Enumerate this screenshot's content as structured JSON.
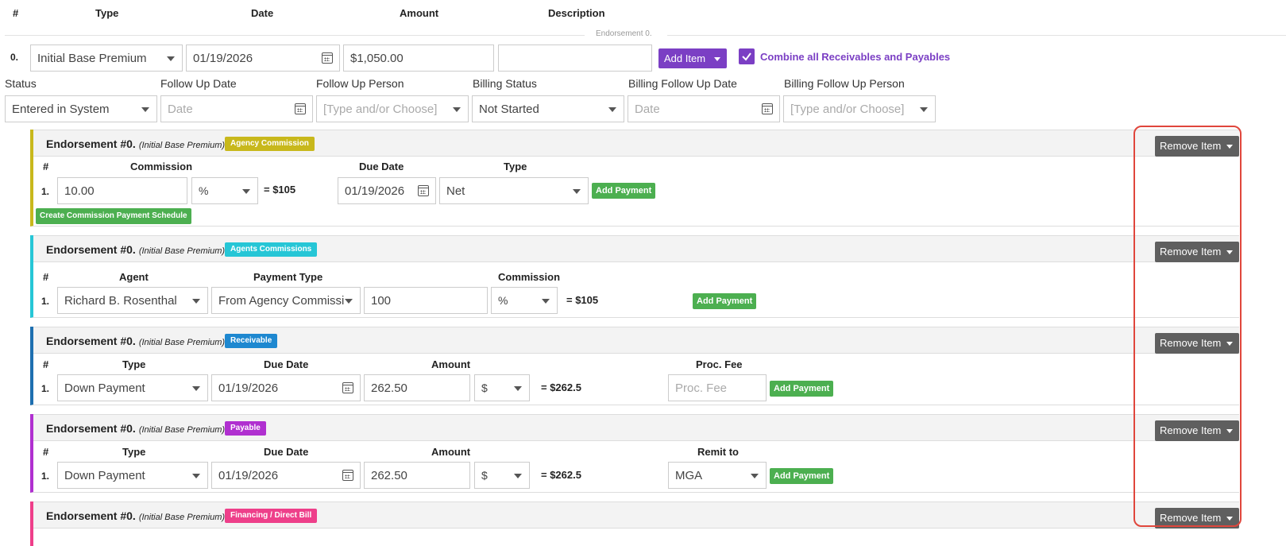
{
  "columns": {
    "num": "#",
    "type": "Type",
    "date": "Date",
    "amount": "Amount",
    "description": "Description"
  },
  "endorsement_divider": "Endorsement 0.",
  "item": {
    "num": "0.",
    "type": "Initial Base Premium",
    "date": "01/19/2026",
    "amount": "$1,050.00",
    "description": "",
    "add_item_label": "Add Item",
    "combine_label": "Combine all Receivables and Payables"
  },
  "status_row": {
    "labels": [
      "Status",
      "Follow Up Date",
      "Follow Up Person",
      "Billing Status",
      "Billing Follow Up Date",
      "Billing Follow Up Person"
    ],
    "status": "Entered in System",
    "follow_up_date_ph": "Date",
    "follow_up_person_ph": "[Type and/or Choose]",
    "billing_status": "Not Started",
    "billing_follow_up_date_ph": "Date",
    "billing_follow_up_person_ph": "[Type and/or Choose]"
  },
  "sections": [
    {
      "title": "Endorsement #0.",
      "subtitle": "(Initial Base Premium)",
      "badge": "Agency Commission",
      "badge_color": "#c8b81c",
      "border_color": "#c8b81c",
      "remove_label": "Remove Item",
      "headers": [
        "#",
        "Commission",
        "Due Date",
        "Type"
      ],
      "row": {
        "num": "1.",
        "commission": "10.00",
        "unit": "%",
        "eq": "= $105",
        "due_date": "01/19/2026",
        "type": "Net",
        "add_payment": "Add Payment"
      },
      "extra_button": "Create Commission Payment Schedule"
    },
    {
      "title": "Endorsement #0.",
      "subtitle": "(Initial Base Premium)",
      "badge": "Agents Commissions",
      "badge_color": "#26c6d6",
      "border_color": "#26c6d6",
      "remove_label": "Remove Item",
      "headers": [
        "#",
        "Agent",
        "Payment Type",
        "Commission"
      ],
      "row": {
        "num": "1.",
        "agent": "Richard B. Rosenthal",
        "payment_type": "From Agency Commissi",
        "commission": "100",
        "unit": "%",
        "eq": "= $105",
        "add_payment": "Add Payment"
      }
    },
    {
      "title": "Endorsement #0.",
      "subtitle": "(Initial Base Premium)",
      "badge": "Receivable",
      "badge_color": "#1e88d0",
      "border_color": "#1e6fb0",
      "remove_label": "Remove Item",
      "headers": [
        "#",
        "Type",
        "Due Date",
        "Amount",
        "Proc. Fee"
      ],
      "row": {
        "num": "1.",
        "type": "Down Payment",
        "due_date": "01/19/2026",
        "amount": "262.50",
        "unit": "$",
        "eq": "= $262.5",
        "proc_fee_ph": "Proc. Fee",
        "add_payment": "Add Payment"
      }
    },
    {
      "title": "Endorsement #0.",
      "subtitle": "(Initial Base Premium)",
      "badge": "Payable",
      "badge_color": "#b030d0",
      "border_color": "#b030d0",
      "remove_label": "Remove Item",
      "headers": [
        "#",
        "Type",
        "Due Date",
        "Amount",
        "Remit to"
      ],
      "row": {
        "num": "1.",
        "type": "Down Payment",
        "due_date": "01/19/2026",
        "amount": "262.50",
        "unit": "$",
        "eq": "= $262.5",
        "remit_to": "MGA",
        "add_payment": "Add Payment"
      }
    },
    {
      "title": "Endorsement #0.",
      "subtitle": "(Initial Base Premium)",
      "badge": "Financing / Direct Bill",
      "badge_color": "#ee3f8a",
      "border_color": "#ee3f8a",
      "remove_label": "Remove Item"
    }
  ],
  "colors": {
    "accent_purple": "#7b3fc4",
    "highlight_box": "#e0463c"
  }
}
